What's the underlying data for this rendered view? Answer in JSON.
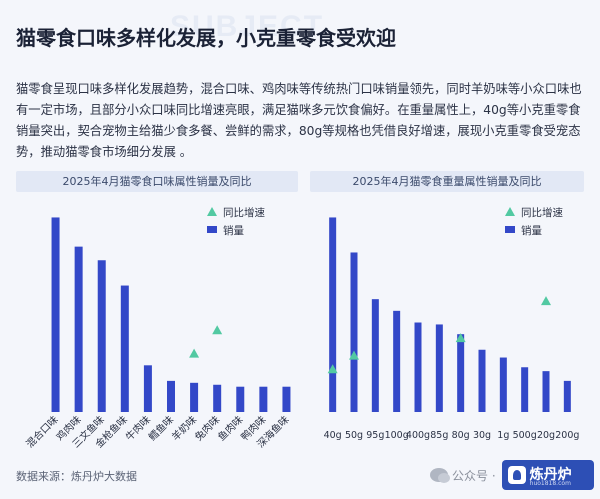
{
  "title": "猫零食口味多样化发展，小克重零食受欢迎",
  "body": "猫零食呈现口味多样化发展趋势，混合口味、鸡肉味等传统热门口味销量领先，同时羊奶味等小众口味也有一定市场，且部分小众口味同比增速亮眼，满足猫咪多元饮食偏好。在重量属性上，40g等小克重零食销量突出，契合宠物主给猫少食多餐、尝鲜的需求，80g等规格也凭借良好增速，展现小克重零食受宠态势，推动猫零食市场细分发展 。",
  "source": "数据来源：炼丹炉大数据",
  "footer": {
    "wechat_label": "公众号 ·",
    "logo_name": "炼丹炉",
    "logo_url": "huo1818.com"
  },
  "watermark": "SUBJECT",
  "colors": {
    "bar": "#3348c8",
    "marker": "#52c9a2",
    "header_bg": "#e2e8f5"
  },
  "chart_data": [
    {
      "type": "bar",
      "title": "2025年4月猫零食口味属性销量及同比",
      "categories": [
        "混合口味",
        "鸡肉味",
        "三文鱼味",
        "金枪鱼味",
        "牛肉味",
        "鳕鱼味",
        "羊奶味",
        "兔肉味",
        "鱼肉味",
        "鸭肉味",
        "深海鱼味"
      ],
      "series": [
        {
          "name": "销量",
          "kind": "bar",
          "values": [
            100,
            85,
            78,
            65,
            24,
            16,
            15,
            14,
            13,
            13,
            13
          ]
        },
        {
          "name": "同比增速",
          "kind": "marker",
          "values": [
            null,
            null,
            null,
            null,
            null,
            null,
            30,
            42,
            null,
            null,
            null
          ]
        }
      ],
      "legend_position": "top-right",
      "ylim": [
        0,
        110
      ],
      "grid": false
    },
    {
      "type": "bar",
      "title": "2025年4月猫零食重量属性销量及同比",
      "categories": [
        "40g",
        "50g",
        "95g",
        "100g",
        "400g",
        "85g",
        "80g",
        "30g",
        "1g",
        "500g",
        "20g",
        "200g"
      ],
      "series": [
        {
          "name": "销量",
          "kind": "bar",
          "values": [
            100,
            82,
            58,
            52,
            46,
            45,
            40,
            32,
            28,
            23,
            21,
            16
          ]
        },
        {
          "name": "同比增速",
          "kind": "marker",
          "values": [
            22,
            29,
            null,
            null,
            null,
            null,
            38,
            null,
            null,
            null,
            57,
            null
          ]
        }
      ],
      "legend_position": "top-right",
      "ylim": [
        0,
        110
      ],
      "grid": false
    }
  ]
}
